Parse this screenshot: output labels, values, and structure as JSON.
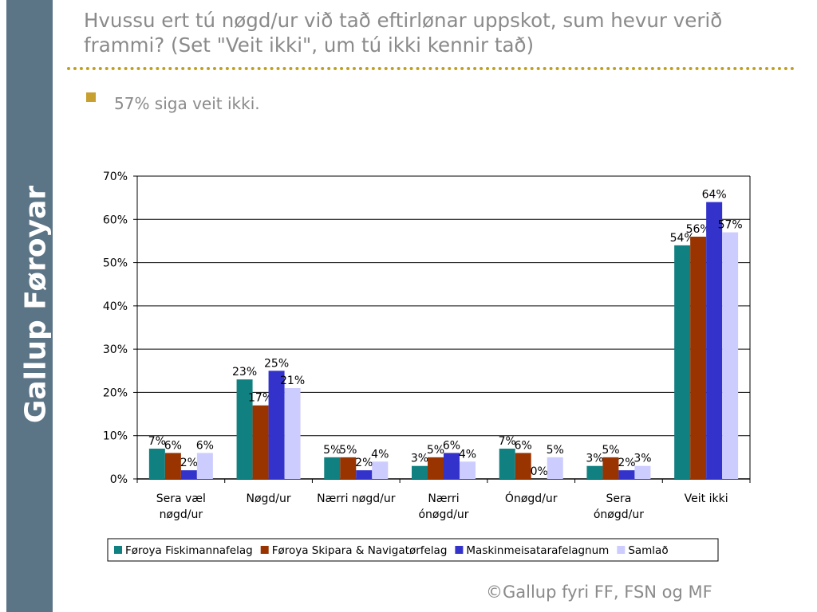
{
  "sidebar": {
    "brand": "Gallup Føroyar"
  },
  "header": {
    "title_line1": "Hvussu ert tú nøgd/ur við tað eftirlønar uppskot, sum hevur verið",
    "title_line2": "frammi? (Set \"Veit ikki\", um tú ikki kennir tað)"
  },
  "bullets": [
    {
      "text": "57% siga veit ikki."
    }
  ],
  "footer": {
    "copyright": "©Gallup fyri FF, FSN og MF"
  },
  "chart_data": {
    "type": "bar",
    "categories": [
      [
        "Sera væl",
        "nøgd/ur"
      ],
      [
        "Nøgd/ur"
      ],
      [
        "Nærri nøgd/ur"
      ],
      [
        "Nærri",
        "ónøgd/ur"
      ],
      [
        "Ónøgd/ur"
      ],
      [
        "Sera",
        "ónøgd/ur"
      ],
      [
        "Veit ikki"
      ]
    ],
    "series": [
      {
        "name": "Føroya Fiskimannafelag",
        "color": "#108080",
        "values": [
          7,
          23,
          5,
          3,
          7,
          3,
          54
        ]
      },
      {
        "name": "Føroya Skipara & Navigatørfelag",
        "color": "#993300",
        "values": [
          6,
          17,
          5,
          5,
          6,
          5,
          56
        ]
      },
      {
        "name": "Maskinmeisatarafelagnum",
        "color": "#3333cc",
        "values": [
          2,
          25,
          2,
          6,
          0,
          2,
          64
        ]
      },
      {
        "name": "Samlað",
        "color": "#ccccff",
        "values": [
          6,
          21,
          4,
          4,
          5,
          3,
          57
        ]
      }
    ],
    "ylim": [
      0,
      70
    ],
    "yticks": [
      0,
      10,
      20,
      30,
      40,
      50,
      60,
      70
    ],
    "tick_suffix": "%",
    "value_suffix": "%",
    "legend_position": "bottom",
    "grid": true
  }
}
